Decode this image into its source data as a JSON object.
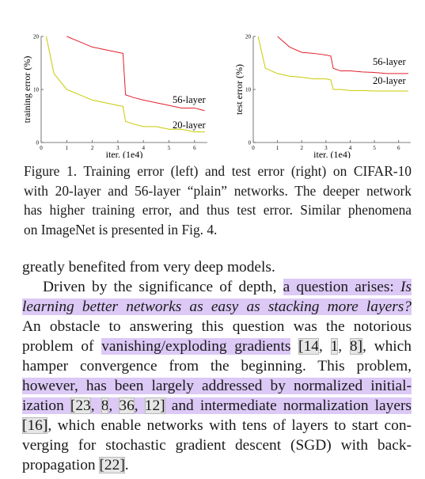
{
  "chart_data": [
    {
      "type": "line",
      "y_label": "training error (%)",
      "x_label": "iter. (1e4)",
      "x": [
        0.2,
        0.5,
        1,
        1.5,
        2,
        2.5,
        3,
        3.2,
        3.3,
        3.6,
        4,
        4.5,
        5,
        5.5,
        6,
        6.4
      ],
      "xlim": [
        0,
        6.5
      ],
      "xticks": [
        0,
        1,
        2,
        3,
        4,
        5,
        6
      ],
      "ylim": [
        0,
        20
      ],
      "yticks": [
        0,
        10,
        20
      ],
      "series": [
        {
          "name": "56-layer",
          "color": "#e3202a",
          "values": [
            null,
            null,
            20,
            19,
            18,
            17.5,
            17,
            16.8,
            9,
            8.5,
            8,
            7.5,
            7,
            6.5,
            6.5,
            6
          ]
        },
        {
          "name": "20-layer",
          "color": "#c9c900",
          "values": [
            20,
            13,
            10,
            9,
            8,
            7.5,
            7,
            6.8,
            4,
            3.5,
            3,
            3,
            2.5,
            2.5,
            2,
            2
          ]
        }
      ]
    },
    {
      "type": "line",
      "y_label": "test error (%)",
      "x_label": "iter. (1e4)",
      "x": [
        0.2,
        0.5,
        1,
        1.5,
        2,
        2.5,
        3,
        3.2,
        3.3,
        3.6,
        4,
        4.5,
        5,
        5.5,
        6,
        6.4
      ],
      "xlim": [
        0,
        6.5
      ],
      "xticks": [
        0,
        1,
        2,
        3,
        4,
        5,
        6
      ],
      "ylim": [
        0,
        20
      ],
      "yticks": [
        0,
        10,
        20
      ],
      "series": [
        {
          "name": "56-layer",
          "color": "#e3202a",
          "values": [
            null,
            null,
            20,
            18,
            17,
            16.8,
            16.5,
            16.3,
            14,
            13.5,
            13.5,
            13.3,
            13.2,
            13,
            13,
            13
          ]
        },
        {
          "name": "20-layer",
          "color": "#c9c900",
          "values": [
            20,
            14,
            13,
            12.5,
            12.3,
            12,
            12,
            11.8,
            10,
            10,
            9.8,
            9.8,
            9.7,
            9.7,
            9.7,
            9.7
          ]
        }
      ]
    }
  ],
  "caption": {
    "lines": [
      "Figure 1. Training error (left) and test error (right) on CIFAR-10",
      "with 20-layer and 56-layer “plain” networks. The deeper network",
      "has higher training error, and thus test error. Similar phenomena",
      "on ImageNet is presented in Fig. 4."
    ]
  },
  "body": {
    "paragraphs": [
      {
        "lines": [
          {
            "runs": [
              {
                "text": "greatly benefited from very deep models."
              }
            ]
          }
        ]
      },
      {
        "lines": [
          {
            "runs": [
              {
                "text": "Driven by the significance of depth, "
              },
              {
                "text": "a question arises: ",
                "highlight": true
              },
              {
                "text": "Is",
                "highlight": true,
                "italic": true
              }
            ]
          },
          {
            "runs": [
              {
                "text": "learning better networks as easy as stacking more layers?",
                "highlight": true,
                "italic": true
              }
            ]
          },
          {
            "runs": [
              {
                "text": "An obstacle to answering this question was the notorious"
              }
            ]
          },
          {
            "runs": [
              {
                "text": "problem of "
              },
              {
                "text": "vanishing/exploding gradients",
                "highlight": true
              },
              {
                "text": " "
              },
              {
                "text": "[14",
                "cite": true
              },
              {
                "text": ", "
              },
              {
                "text": "1",
                "cite": true
              },
              {
                "text": ", "
              },
              {
                "text": "8]",
                "cite": true
              },
              {
                "text": ", which"
              }
            ]
          },
          {
            "runs": [
              {
                "text": "hamper convergence from the beginning. This problem,"
              }
            ]
          },
          {
            "runs": [
              {
                "text": "however, has been largely addressed by normalized initial-",
                "highlight": true
              }
            ]
          },
          {
            "runs": [
              {
                "text": "ization ",
                "highlight": true
              },
              {
                "text": "[23",
                "highlight": true,
                "cite": true
              },
              {
                "text": ", ",
                "highlight": true
              },
              {
                "text": "8",
                "highlight": true,
                "cite": true
              },
              {
                "text": ", ",
                "highlight": true
              },
              {
                "text": "36",
                "highlight": true,
                "cite": true
              },
              {
                "text": ", ",
                "highlight": true
              },
              {
                "text": "12]",
                "highlight": true,
                "cite": true
              },
              {
                "text": " and intermediate normalization layers",
                "highlight": true
              }
            ]
          },
          {
            "runs": [
              {
                "text": "[16]",
                "cite": true
              },
              {
                "text": ", which enable networks with tens of layers to start con-"
              }
            ]
          },
          {
            "runs": [
              {
                "text": "verging for stochastic gradient descent (SGD) with back-"
              }
            ]
          },
          {
            "runs": [
              {
                "text": "propagation "
              },
              {
                "text": "[22]",
                "cite": true
              },
              {
                "text": "."
              }
            ]
          }
        ]
      }
    ]
  }
}
